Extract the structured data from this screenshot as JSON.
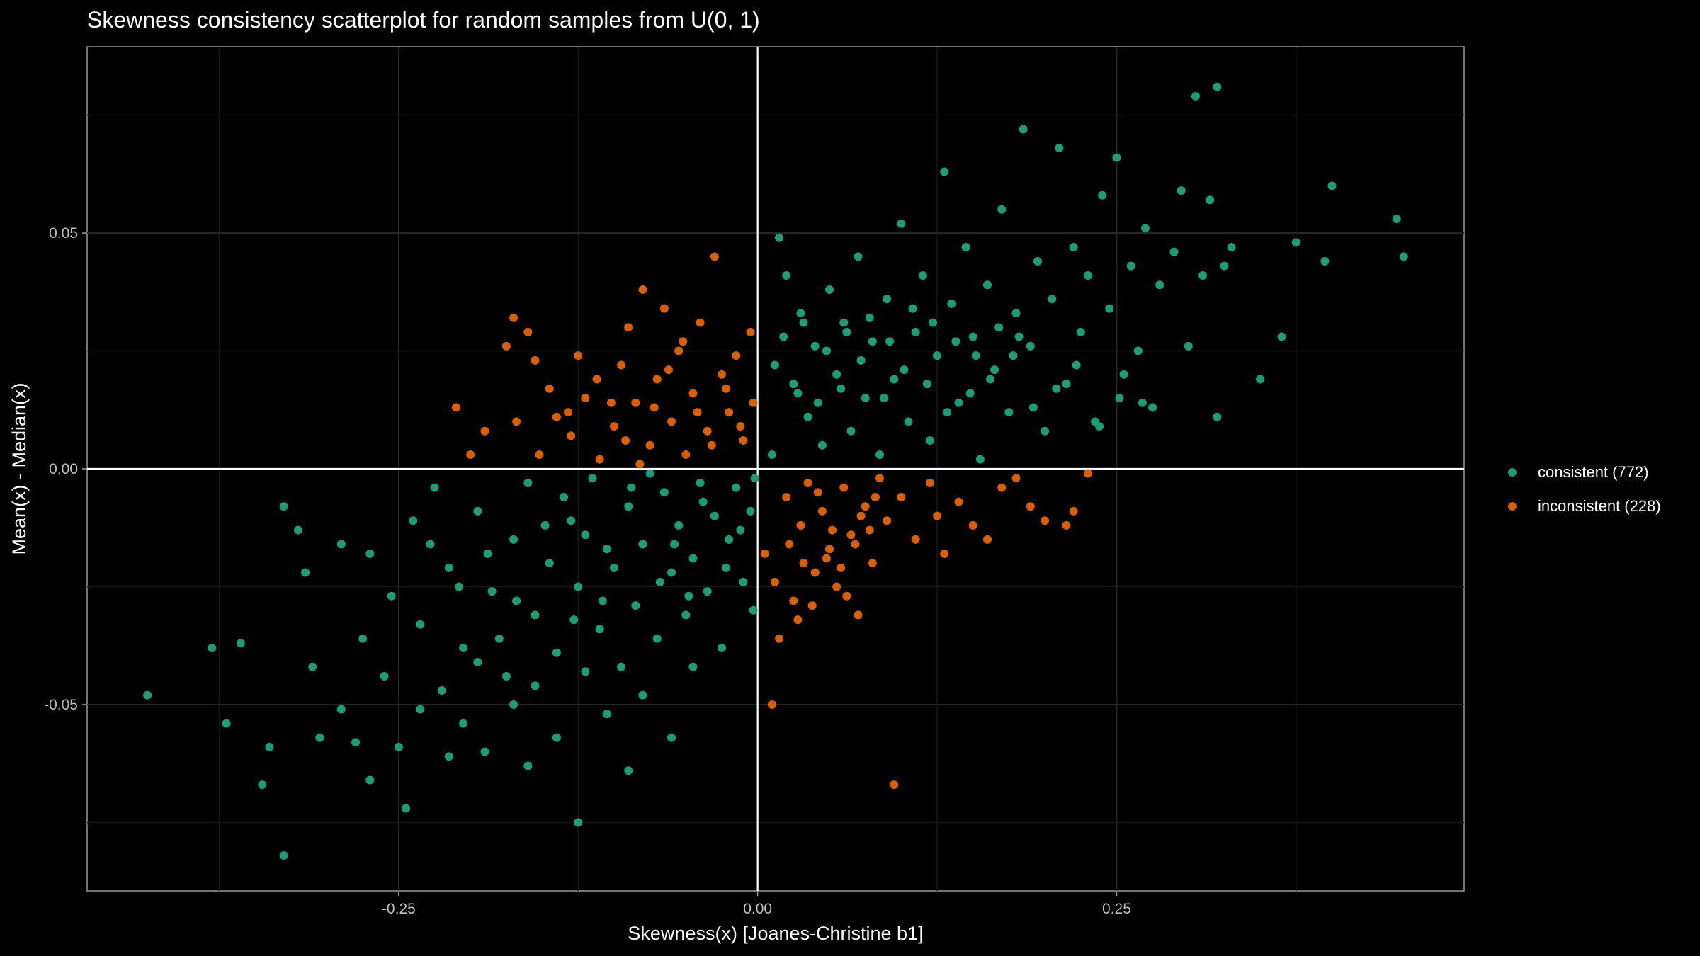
{
  "chart_data": {
    "type": "scatter",
    "title": "Skewness consistency scatterplot for random samples from U(0, 1)",
    "xlabel": "Skewness(x)  [Joanes-Christine b1]",
    "ylabel": "Mean(x) - Median(x)",
    "xlim": [
      -0.467,
      0.492
    ],
    "ylim": [
      -0.0895,
      0.0895
    ],
    "x_ticks": [
      {
        "value": -0.25,
        "label": "-0.25"
      },
      {
        "value": 0.0,
        "label": "0.00"
      },
      {
        "value": 0.25,
        "label": "0.25"
      }
    ],
    "y_ticks": [
      {
        "value": -0.05,
        "label": "-0.05"
      },
      {
        "value": 0.0,
        "label": "0.00"
      },
      {
        "value": 0.05,
        "label": "0.05"
      }
    ],
    "grid": true,
    "reference_lines": {
      "x": 0,
      "y": 0
    },
    "legend_position": "right",
    "series": [
      {
        "name": "consistent (772)",
        "color": "#1b9e77",
        "points": [
          [
            -0.425,
            -0.048
          ],
          [
            -0.38,
            -0.038
          ],
          [
            -0.37,
            -0.054
          ],
          [
            -0.36,
            -0.037
          ],
          [
            -0.345,
            -0.067
          ],
          [
            -0.34,
            -0.059
          ],
          [
            -0.33,
            -0.082
          ],
          [
            -0.315,
            -0.022
          ],
          [
            -0.31,
            -0.042
          ],
          [
            -0.305,
            -0.057
          ],
          [
            -0.29,
            -0.016
          ],
          [
            -0.29,
            -0.051
          ],
          [
            -0.28,
            -0.058
          ],
          [
            -0.275,
            -0.036
          ],
          [
            -0.27,
            -0.066
          ],
          [
            -0.26,
            -0.044
          ],
          [
            -0.25,
            -0.059
          ],
          [
            -0.245,
            -0.072
          ],
          [
            -0.235,
            -0.051
          ],
          [
            -0.22,
            -0.047
          ],
          [
            -0.215,
            -0.061
          ],
          [
            -0.205,
            -0.054
          ],
          [
            -0.195,
            -0.041
          ],
          [
            -0.19,
            -0.06
          ],
          [
            -0.18,
            -0.036
          ],
          [
            -0.17,
            -0.05
          ],
          [
            -0.16,
            -0.063
          ],
          [
            -0.155,
            -0.046
          ],
          [
            -0.14,
            -0.057
          ],
          [
            -0.125,
            -0.075
          ],
          [
            -0.12,
            -0.043
          ],
          [
            -0.105,
            -0.052
          ],
          [
            -0.09,
            -0.064
          ],
          [
            -0.08,
            -0.048
          ],
          [
            -0.06,
            -0.057
          ],
          [
            -0.045,
            -0.042
          ],
          [
            -0.33,
            -0.008
          ],
          [
            -0.32,
            -0.013
          ],
          [
            -0.27,
            -0.018
          ],
          [
            -0.255,
            -0.027
          ],
          [
            -0.24,
            -0.011
          ],
          [
            -0.235,
            -0.033
          ],
          [
            -0.225,
            -0.004
          ],
          [
            -0.215,
            -0.021
          ],
          [
            -0.205,
            -0.038
          ],
          [
            -0.195,
            -0.009
          ],
          [
            -0.185,
            -0.026
          ],
          [
            -0.175,
            -0.044
          ],
          [
            -0.17,
            -0.015
          ],
          [
            -0.16,
            -0.003
          ],
          [
            -0.155,
            -0.031
          ],
          [
            -0.145,
            -0.02
          ],
          [
            -0.14,
            -0.039
          ],
          [
            -0.13,
            -0.011
          ],
          [
            -0.125,
            -0.025
          ],
          [
            -0.115,
            -0.002
          ],
          [
            -0.11,
            -0.034
          ],
          [
            -0.105,
            -0.017
          ],
          [
            -0.095,
            -0.042
          ],
          [
            -0.09,
            -0.008
          ],
          [
            -0.085,
            -0.029
          ],
          [
            -0.08,
            -0.016
          ],
          [
            -0.07,
            -0.036
          ],
          [
            -0.065,
            -0.005
          ],
          [
            -0.06,
            -0.022
          ],
          [
            -0.055,
            -0.012
          ],
          [
            -0.05,
            -0.031
          ],
          [
            -0.045,
            -0.019
          ],
          [
            -0.04,
            -0.003
          ],
          [
            -0.035,
            -0.026
          ],
          [
            -0.03,
            -0.01
          ],
          [
            -0.025,
            -0.038
          ],
          [
            -0.02,
            -0.015
          ],
          [
            -0.015,
            -0.004
          ],
          [
            -0.01,
            -0.024
          ],
          [
            -0.005,
            -0.009
          ],
          [
            -0.003,
            -0.03
          ],
          [
            -0.002,
            -0.002
          ],
          [
            -0.135,
            -0.006
          ],
          [
            -0.12,
            -0.014
          ],
          [
            -0.1,
            -0.021
          ],
          [
            -0.075,
            -0.001
          ],
          [
            -0.058,
            -0.016
          ],
          [
            -0.038,
            -0.007
          ],
          [
            -0.022,
            -0.021
          ],
          [
            -0.012,
            -0.013
          ],
          [
            -0.048,
            -0.027
          ],
          [
            -0.068,
            -0.024
          ],
          [
            -0.088,
            -0.004
          ],
          [
            -0.108,
            -0.028
          ],
          [
            -0.128,
            -0.032
          ],
          [
            -0.148,
            -0.012
          ],
          [
            -0.168,
            -0.028
          ],
          [
            -0.188,
            -0.018
          ],
          [
            -0.208,
            -0.025
          ],
          [
            -0.228,
            -0.016
          ],
          [
            0.01,
            0.003
          ],
          [
            0.015,
            0.049
          ],
          [
            0.02,
            0.041
          ],
          [
            0.025,
            0.018
          ],
          [
            0.03,
            0.033
          ],
          [
            0.035,
            0.011
          ],
          [
            0.04,
            0.026
          ],
          [
            0.045,
            0.005
          ],
          [
            0.05,
            0.038
          ],
          [
            0.055,
            0.02
          ],
          [
            0.06,
            0.031
          ],
          [
            0.065,
            0.008
          ],
          [
            0.07,
            0.045
          ],
          [
            0.075,
            0.015
          ],
          [
            0.08,
            0.027
          ],
          [
            0.085,
            0.003
          ],
          [
            0.09,
            0.036
          ],
          [
            0.095,
            0.019
          ],
          [
            0.1,
            0.052
          ],
          [
            0.105,
            0.01
          ],
          [
            0.11,
            0.029
          ],
          [
            0.115,
            0.041
          ],
          [
            0.12,
            0.006
          ],
          [
            0.125,
            0.024
          ],
          [
            0.13,
            0.063
          ],
          [
            0.135,
            0.035
          ],
          [
            0.14,
            0.014
          ],
          [
            0.145,
            0.047
          ],
          [
            0.15,
            0.028
          ],
          [
            0.155,
            0.002
          ],
          [
            0.16,
            0.039
          ],
          [
            0.165,
            0.021
          ],
          [
            0.17,
            0.055
          ],
          [
            0.175,
            0.012
          ],
          [
            0.18,
            0.033
          ],
          [
            0.185,
            0.072
          ],
          [
            0.19,
            0.026
          ],
          [
            0.195,
            0.044
          ],
          [
            0.2,
            0.008
          ],
          [
            0.205,
            0.036
          ],
          [
            0.21,
            0.068
          ],
          [
            0.215,
            0.018
          ],
          [
            0.22,
            0.047
          ],
          [
            0.225,
            0.029
          ],
          [
            0.23,
            0.041
          ],
          [
            0.235,
            0.01
          ],
          [
            0.24,
            0.058
          ],
          [
            0.245,
            0.034
          ],
          [
            0.25,
            0.066
          ],
          [
            0.255,
            0.02
          ],
          [
            0.26,
            0.043
          ],
          [
            0.265,
            0.025
          ],
          [
            0.27,
            0.051
          ],
          [
            0.275,
            0.013
          ],
          [
            0.28,
            0.039
          ],
          [
            0.29,
            0.046
          ],
          [
            0.295,
            0.059
          ],
          [
            0.3,
            0.026
          ],
          [
            0.31,
            0.041
          ],
          [
            0.315,
            0.057
          ],
          [
            0.32,
            0.011
          ],
          [
            0.325,
            0.043
          ],
          [
            0.32,
            0.081
          ],
          [
            0.305,
            0.079
          ],
          [
            0.35,
            0.019
          ],
          [
            0.365,
            0.028
          ],
          [
            0.375,
            0.048
          ],
          [
            0.395,
            0.044
          ],
          [
            0.4,
            0.06
          ],
          [
            0.445,
            0.053
          ],
          [
            0.45,
            0.045
          ],
          [
            0.33,
            0.047
          ],
          [
            0.012,
            0.022
          ],
          [
            0.028,
            0.016
          ],
          [
            0.042,
            0.014
          ],
          [
            0.058,
            0.017
          ],
          [
            0.072,
            0.023
          ],
          [
            0.088,
            0.015
          ],
          [
            0.102,
            0.021
          ],
          [
            0.118,
            0.018
          ],
          [
            0.132,
            0.012
          ],
          [
            0.148,
            0.016
          ],
          [
            0.162,
            0.019
          ],
          [
            0.178,
            0.024
          ],
          [
            0.192,
            0.013
          ],
          [
            0.208,
            0.017
          ],
          [
            0.222,
            0.022
          ],
          [
            0.238,
            0.009
          ],
          [
            0.252,
            0.015
          ],
          [
            0.268,
            0.014
          ],
          [
            0.018,
            0.028
          ],
          [
            0.032,
            0.031
          ],
          [
            0.048,
            0.025
          ],
          [
            0.062,
            0.029
          ],
          [
            0.078,
            0.032
          ],
          [
            0.092,
            0.027
          ],
          [
            0.108,
            0.034
          ],
          [
            0.122,
            0.031
          ],
          [
            0.138,
            0.027
          ],
          [
            0.152,
            0.024
          ],
          [
            0.168,
            0.03
          ],
          [
            0.182,
            0.028
          ]
        ]
      },
      {
        "name": "inconsistent (228)",
        "color": "#d95f02",
        "points": [
          [
            -0.21,
            0.013
          ],
          [
            -0.2,
            0.003
          ],
          [
            -0.19,
            0.008
          ],
          [
            -0.175,
            0.026
          ],
          [
            -0.17,
            0.032
          ],
          [
            -0.16,
            0.029
          ],
          [
            -0.155,
            0.023
          ],
          [
            -0.145,
            0.017
          ],
          [
            -0.14,
            0.011
          ],
          [
            -0.13,
            0.007
          ],
          [
            -0.125,
            0.024
          ],
          [
            -0.12,
            0.015
          ],
          [
            -0.11,
            0.002
          ],
          [
            -0.1,
            0.009
          ],
          [
            -0.095,
            0.022
          ],
          [
            -0.09,
            0.03
          ],
          [
            -0.085,
            0.014
          ],
          [
            -0.08,
            0.038
          ],
          [
            -0.075,
            0.005
          ],
          [
            -0.07,
            0.019
          ],
          [
            -0.065,
            0.034
          ],
          [
            -0.06,
            0.01
          ],
          [
            -0.055,
            0.025
          ],
          [
            -0.05,
            0.003
          ],
          [
            -0.045,
            0.016
          ],
          [
            -0.04,
            0.031
          ],
          [
            -0.035,
            0.008
          ],
          [
            -0.03,
            0.045
          ],
          [
            -0.025,
            0.02
          ],
          [
            -0.02,
            0.012
          ],
          [
            -0.015,
            0.024
          ],
          [
            -0.01,
            0.006
          ],
          [
            -0.005,
            0.029
          ],
          [
            -0.003,
            0.014
          ],
          [
            -0.062,
            0.021
          ],
          [
            -0.042,
            0.012
          ],
          [
            -0.022,
            0.017
          ],
          [
            -0.012,
            0.009
          ],
          [
            -0.032,
            0.005
          ],
          [
            -0.052,
            0.027
          ],
          [
            -0.072,
            0.013
          ],
          [
            -0.092,
            0.006
          ],
          [
            -0.112,
            0.019
          ],
          [
            -0.132,
            0.012
          ],
          [
            -0.152,
            0.003
          ],
          [
            -0.168,
            0.01
          ],
          [
            -0.082,
            0.001
          ],
          [
            -0.102,
            0.014
          ],
          [
            0.005,
            -0.018
          ],
          [
            0.01,
            -0.05
          ],
          [
            0.015,
            -0.036
          ],
          [
            0.02,
            -0.006
          ],
          [
            0.025,
            -0.028
          ],
          [
            0.03,
            -0.012
          ],
          [
            0.035,
            -0.003
          ],
          [
            0.04,
            -0.022
          ],
          [
            0.045,
            -0.009
          ],
          [
            0.05,
            -0.017
          ],
          [
            0.055,
            -0.025
          ],
          [
            0.06,
            -0.004
          ],
          [
            0.065,
            -0.014
          ],
          [
            0.07,
            -0.031
          ],
          [
            0.075,
            -0.008
          ],
          [
            0.08,
            -0.02
          ],
          [
            0.085,
            -0.002
          ],
          [
            0.09,
            -0.011
          ],
          [
            0.095,
            -0.067
          ],
          [
            0.1,
            -0.006
          ],
          [
            0.11,
            -0.015
          ],
          [
            0.12,
            -0.003
          ],
          [
            0.125,
            -0.01
          ],
          [
            0.13,
            -0.018
          ],
          [
            0.14,
            -0.007
          ],
          [
            0.15,
            -0.012
          ],
          [
            0.16,
            -0.015
          ],
          [
            0.17,
            -0.004
          ],
          [
            0.18,
            -0.002
          ],
          [
            0.19,
            -0.008
          ],
          [
            0.2,
            -0.011
          ],
          [
            0.215,
            -0.012
          ],
          [
            0.22,
            -0.009
          ],
          [
            0.23,
            -0.001
          ],
          [
            0.012,
            -0.024
          ],
          [
            0.022,
            -0.016
          ],
          [
            0.032,
            -0.02
          ],
          [
            0.042,
            -0.005
          ],
          [
            0.052,
            -0.013
          ],
          [
            0.062,
            -0.027
          ],
          [
            0.072,
            -0.01
          ],
          [
            0.082,
            -0.006
          ],
          [
            0.028,
            -0.032
          ],
          [
            0.038,
            -0.029
          ],
          [
            0.048,
            -0.019
          ],
          [
            0.058,
            -0.021
          ],
          [
            0.068,
            -0.016
          ],
          [
            0.078,
            -0.013
          ]
        ]
      }
    ]
  }
}
